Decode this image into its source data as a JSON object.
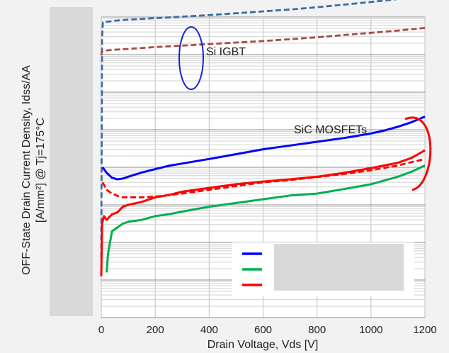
{
  "chart_data": {
    "type": "line",
    "xlabel": "Drain Voltage, Vds [V]",
    "ylabel_line1": "OFF-State Drain Current Density, Idss/AA",
    "ylabel_line2": "[A/mm²] @ Tj=175°C",
    "xlim": [
      0,
      1200
    ],
    "x_ticks": [
      "0",
      "200",
      "400",
      "600",
      "800",
      "1000",
      "1200"
    ],
    "y_scale": "log",
    "y_decades": 8,
    "y_tick_labels_hidden": true,
    "grid": true,
    "legend_position": "bottom-right",
    "legend_labels_hidden": true,
    "annotations": [
      "Si IGBT",
      "SiC MOSFETs"
    ],
    "series": [
      {
        "color": "#3a6ea5",
        "style": "dashed",
        "group": "Si IGBT",
        "x": [
          0,
          3,
          6,
          50,
          100,
          200,
          300,
          400,
          500,
          600,
          700,
          800,
          900,
          1000,
          1100,
          1200
        ],
        "y": [
          1.6,
          7.4,
          7.86,
          7.9,
          7.93,
          7.97,
          8.01,
          8.05,
          8.1,
          8.15,
          8.2,
          8.26,
          8.33,
          8.4,
          8.48,
          8.57
        ]
      },
      {
        "color": "#a94a44",
        "style": "dashed",
        "group": "Si IGBT",
        "x": [
          0,
          3,
          50,
          100,
          200,
          300,
          400,
          500,
          600,
          700,
          800,
          900,
          1000,
          1100,
          1200
        ],
        "y": [
          6.98,
          7.1,
          7.13,
          7.15,
          7.2,
          7.24,
          7.28,
          7.32,
          7.36,
          7.41,
          7.46,
          7.52,
          7.58,
          7.64,
          7.71
        ]
      },
      {
        "color": "#0000ff",
        "style": "solid",
        "group": "SiC MOSFETs",
        "x": [
          5,
          20,
          40,
          60,
          80,
          100,
          150,
          200,
          250,
          300,
          400,
          500,
          600,
          700,
          800,
          900,
          1000,
          1050,
          1100,
          1150,
          1200
        ],
        "y": [
          4.0,
          3.85,
          3.72,
          3.68,
          3.7,
          3.75,
          3.86,
          3.95,
          4.04,
          4.1,
          4.22,
          4.35,
          4.48,
          4.58,
          4.68,
          4.78,
          4.9,
          4.98,
          5.08,
          5.2,
          5.35
        ]
      },
      {
        "color": "#ff0000",
        "style": "solid",
        "group": "SiC MOSFETs",
        "x": [
          0,
          3,
          10,
          20,
          40,
          60,
          80,
          100,
          150,
          200,
          250,
          300,
          400,
          500,
          600,
          700,
          800,
          900,
          1000,
          1100,
          1150,
          1200
        ],
        "y": [
          1.1,
          2.5,
          2.7,
          2.6,
          2.75,
          2.8,
          2.95,
          3.0,
          3.08,
          3.2,
          3.26,
          3.35,
          3.45,
          3.55,
          3.62,
          3.68,
          3.75,
          3.85,
          3.98,
          4.12,
          4.25,
          4.45
        ]
      },
      {
        "color": "#ff0000",
        "style": "dashed",
        "group": "SiC MOSFETs",
        "x": [
          5,
          20,
          40,
          60,
          80,
          100,
          150,
          200,
          300,
          400,
          500,
          600,
          700,
          800,
          900,
          1000,
          1100,
          1200
        ],
        "y": [
          3.6,
          3.4,
          3.3,
          3.24,
          3.2,
          3.2,
          3.2,
          3.22,
          3.3,
          3.4,
          3.5,
          3.6,
          3.66,
          3.74,
          3.82,
          3.92,
          4.05,
          4.22
        ]
      },
      {
        "color": "#00b050",
        "style": "solid",
        "group": "SiC MOSFETs",
        "x": [
          20,
          25,
          30,
          40,
          60,
          80,
          100,
          150,
          200,
          250,
          300,
          400,
          500,
          600,
          700,
          800,
          900,
          1000,
          1100,
          1150,
          1200
        ],
        "y": [
          1.2,
          1.7,
          1.9,
          2.3,
          2.4,
          2.5,
          2.55,
          2.6,
          2.7,
          2.75,
          2.82,
          2.95,
          3.05,
          3.15,
          3.25,
          3.3,
          3.42,
          3.55,
          3.75,
          3.88,
          4.05
        ]
      }
    ],
    "legend": [
      {
        "color": "#0000ff",
        "style": "solid"
      },
      {
        "color": "#00b050",
        "style": "solid"
      },
      {
        "color": "#ff0000",
        "style": "solid"
      }
    ]
  }
}
